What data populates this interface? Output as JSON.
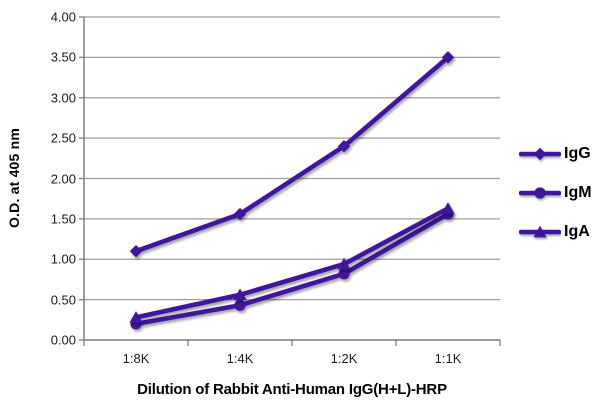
{
  "chart_data": {
    "type": "line",
    "title": "",
    "xlabel": "Dilution of Rabbit Anti-Human IgG(H+L)-HRP",
    "ylabel": "O.D. at 405 nm",
    "categories": [
      "1:8K",
      "1:4K",
      "1:2K",
      "1:1K"
    ],
    "series": [
      {
        "name": "IgG",
        "marker": "diamond",
        "values": [
          1.1,
          1.56,
          2.4,
          3.5
        ]
      },
      {
        "name": "IgM",
        "marker": "circle",
        "values": [
          0.2,
          0.43,
          0.82,
          1.56
        ]
      },
      {
        "name": "IgA",
        "marker": "triangle",
        "values": [
          0.28,
          0.56,
          0.94,
          1.63
        ]
      }
    ],
    "ylim": [
      0,
      4
    ],
    "ytick_step": 0.5,
    "ytick_labels": [
      "0.00",
      "0.50",
      "1.00",
      "1.50",
      "2.00",
      "2.50",
      "3.00",
      "3.50",
      "4.00"
    ],
    "grid": true,
    "legend_position": "right",
    "colors": {
      "line": "#40129E",
      "gridline": "#9e9e9e",
      "axis": "#808080",
      "text": "#000000",
      "background": "#ffffff"
    }
  }
}
